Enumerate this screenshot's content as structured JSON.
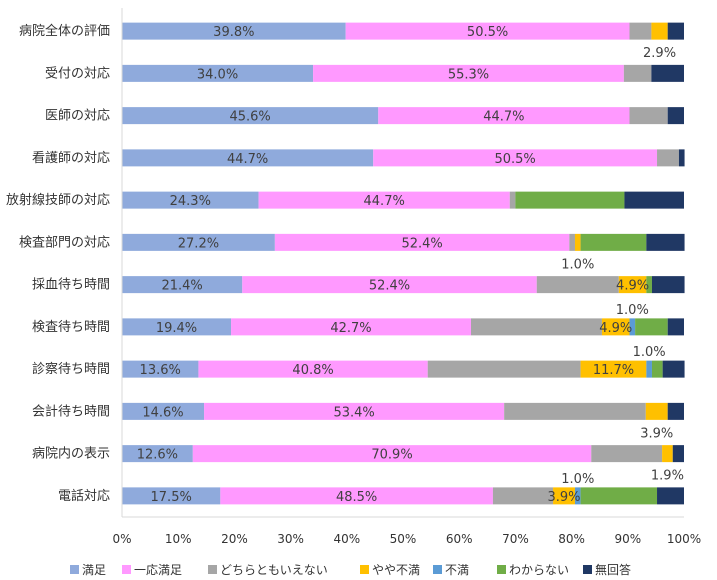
{
  "chart_data": {
    "type": "bar",
    "orientation": "horizontal",
    "stacked": "percent",
    "categories": [
      "病院全体の評価",
      "受付の対応",
      "医師の対応",
      "看護師の対応",
      "放射線技師の対応",
      "検査部門の対応",
      "採血待ち時間",
      "検査待ち時間",
      "診察待ち時間",
      "会計待ち時間",
      "病院内の表示",
      "電話対応"
    ],
    "series": [
      {
        "name": "満足",
        "color": "#8faadc",
        "values": [
          39.8,
          34.0,
          45.6,
          44.7,
          24.3,
          27.2,
          21.4,
          19.4,
          13.6,
          14.6,
          12.6,
          17.5
        ]
      },
      {
        "name": "一応満足",
        "color": "#ff99ff",
        "values": [
          50.5,
          55.3,
          44.7,
          50.5,
          44.7,
          52.4,
          52.4,
          42.7,
          40.8,
          53.4,
          70.9,
          48.5
        ]
      },
      {
        "name": "どちらともいえない",
        "color": "#a6a6a6",
        "values": [
          3.9,
          4.9,
          6.8,
          3.9,
          1.0,
          1.0,
          14.6,
          23.3,
          27.2,
          25.2,
          12.6,
          10.7
        ]
      },
      {
        "name": "やや不満",
        "color": "#ffc000",
        "values": [
          2.9,
          0.0,
          0.0,
          0.0,
          0.0,
          1.0,
          4.9,
          4.9,
          11.7,
          3.9,
          1.9,
          3.9
        ]
      },
      {
        "name": "不満",
        "color": "#5b9bd5",
        "values": [
          0.0,
          0.0,
          0.0,
          0.0,
          0.0,
          0.0,
          0.0,
          1.0,
          1.0,
          0.0,
          0.0,
          1.0
        ]
      },
      {
        "name": "わからない",
        "color": "#70ad47",
        "values": [
          0.0,
          0.0,
          0.0,
          0.0,
          19.4,
          11.7,
          1.0,
          5.8,
          1.9,
          0.0,
          0.0,
          13.6
        ]
      },
      {
        "name": "無回答",
        "color": "#203864",
        "values": [
          2.9,
          5.8,
          2.9,
          1.0,
          10.6,
          6.8,
          5.8,
          2.9,
          3.9,
          2.9,
          2.0,
          4.8
        ]
      }
    ],
    "data_labels": [
      {
        "category": 0,
        "series": 0,
        "text": "39.8%",
        "position": "center"
      },
      {
        "category": 0,
        "series": 1,
        "text": "50.5%",
        "position": "center"
      },
      {
        "category": 0,
        "series": 3,
        "text": "2.9%",
        "position": "below"
      },
      {
        "category": 1,
        "series": 0,
        "text": "34.0%",
        "position": "center"
      },
      {
        "category": 1,
        "series": 1,
        "text": "55.3%",
        "position": "center"
      },
      {
        "category": 2,
        "series": 0,
        "text": "45.6%",
        "position": "center"
      },
      {
        "category": 2,
        "series": 1,
        "text": "44.7%",
        "position": "center"
      },
      {
        "category": 3,
        "series": 0,
        "text": "44.7%",
        "position": "center"
      },
      {
        "category": 3,
        "series": 1,
        "text": "50.5%",
        "position": "center"
      },
      {
        "category": 4,
        "series": 0,
        "text": "24.3%",
        "position": "center"
      },
      {
        "category": 4,
        "series": 1,
        "text": "44.7%",
        "position": "center"
      },
      {
        "category": 5,
        "series": 0,
        "text": "27.2%",
        "position": "center"
      },
      {
        "category": 5,
        "series": 1,
        "text": "52.4%",
        "position": "center"
      },
      {
        "category": 5,
        "series": 3,
        "text": "1.0%",
        "position": "below"
      },
      {
        "category": 6,
        "series": 0,
        "text": "21.4%",
        "position": "center"
      },
      {
        "category": 6,
        "series": 1,
        "text": "52.4%",
        "position": "center"
      },
      {
        "category": 6,
        "series": 3,
        "text": "4.9%",
        "position": "center"
      },
      {
        "category": 7,
        "series": 0,
        "text": "19.4%",
        "position": "center"
      },
      {
        "category": 7,
        "series": 1,
        "text": "42.7%",
        "position": "center"
      },
      {
        "category": 7,
        "series": 3,
        "text": "4.9%",
        "position": "center"
      },
      {
        "category": 7,
        "series": 4,
        "text": "1.0%",
        "position": "above"
      },
      {
        "category": 8,
        "series": 0,
        "text": "13.6%",
        "position": "center"
      },
      {
        "category": 8,
        "series": 1,
        "text": "40.8%",
        "position": "center"
      },
      {
        "category": 8,
        "series": 3,
        "text": "11.7%",
        "position": "center"
      },
      {
        "category": 8,
        "series": 4,
        "text": "1.0%",
        "position": "above"
      },
      {
        "category": 9,
        "series": 0,
        "text": "14.6%",
        "position": "center"
      },
      {
        "category": 9,
        "series": 1,
        "text": "53.4%",
        "position": "center"
      },
      {
        "category": 9,
        "series": 3,
        "text": "3.9%",
        "position": "below"
      },
      {
        "category": 10,
        "series": 0,
        "text": "12.6%",
        "position": "center"
      },
      {
        "category": 10,
        "series": 1,
        "text": "70.9%",
        "position": "center"
      },
      {
        "category": 10,
        "series": 3,
        "text": "1.9%",
        "position": "below"
      },
      {
        "category": 11,
        "series": 0,
        "text": "17.5%",
        "position": "center"
      },
      {
        "category": 11,
        "series": 1,
        "text": "48.5%",
        "position": "center"
      },
      {
        "category": 11,
        "series": 3,
        "text": "3.9%",
        "position": "center"
      },
      {
        "category": 11,
        "series": 4,
        "text": "1.0%",
        "position": "above"
      }
    ],
    "x_ticks": [
      "0%",
      "10%",
      "20%",
      "30%",
      "40%",
      "50%",
      "60%",
      "70%",
      "80%",
      "90%",
      "100%"
    ],
    "xlim": [
      0,
      100
    ],
    "grid": false,
    "legend_position": "bottom",
    "title": "",
    "xlabel": "",
    "ylabel": ""
  }
}
